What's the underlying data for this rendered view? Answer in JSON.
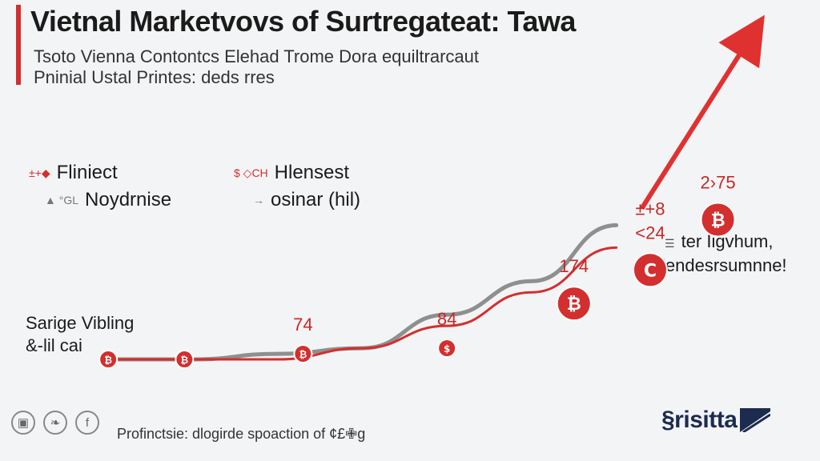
{
  "header": {
    "title": "Vietnal Marketvovs of Surtregаteat: Tawa",
    "subtitle_line1": "Tsoto  Vienna Contontcs Elehad Trome Dora еquiltrarcaut",
    "subtitle_line2": "Pninial Ustal Printes: deds rres"
  },
  "legend": [
    {
      "icon": "±+◆",
      "label": "Fliniect",
      "icon_name": "bitcoin-icon",
      "color": "#d32f2f"
    },
    {
      "icon": "$ ◇CH",
      "label": "Hlensest",
      "icon_name": "dollar-icon",
      "color": "#d32f2f"
    },
    {
      "icon": "▲ °GL",
      "label": "Noydrnise",
      "icon_name": "user-icon",
      "color": "#777777"
    },
    {
      "icon": "→",
      "label": "osinar (hil)",
      "icon_name": "arrow-icon",
      "color": "#777777"
    }
  ],
  "side_notes": {
    "left_line1": "Sarige Vibling",
    "left_line2": "&-lil cai",
    "right_icon": "☰",
    "right_line1": "ter Iigvhum,",
    "right_line2": "lendesrsumnne!"
  },
  "chart_data": {
    "type": "line",
    "colors": {
      "grey_line": "#8f8f8f",
      "red_line": "#d32f2f",
      "arrow": "#e03131",
      "marker": "#d32f2f"
    },
    "grey_series": [
      [
        0,
        0
      ],
      [
        1,
        0
      ],
      [
        2,
        1
      ],
      [
        3,
        2
      ],
      [
        4,
        8
      ],
      [
        5,
        14
      ],
      [
        6,
        24
      ]
    ],
    "red_series": [
      [
        0,
        0
      ],
      [
        2,
        0
      ],
      [
        3,
        2
      ],
      [
        4,
        6
      ],
      [
        5,
        12
      ],
      [
        6,
        20
      ]
    ],
    "arrow_series": [
      [
        6.3,
        27
      ],
      [
        7.6,
        58
      ]
    ],
    "xlim": [
      -0.2,
      7.8
    ],
    "ylim": [
      -3,
      60
    ],
    "markers": [
      {
        "x": 0,
        "y": 0,
        "symbol": "₿",
        "size": "small",
        "label": ""
      },
      {
        "x": 0.9,
        "y": 0,
        "symbol": "₿",
        "size": "small",
        "label": ""
      },
      {
        "x": 2.3,
        "y": 1,
        "symbol": "₿",
        "size": "small",
        "label": "74"
      },
      {
        "x": 4.0,
        "y": 2,
        "symbol": "$",
        "size": "small",
        "label": "84"
      },
      {
        "x": 5.5,
        "y": 10,
        "symbol": "₿",
        "size": "large",
        "label": "174"
      },
      {
        "x": 6.4,
        "y": 16,
        "symbol": "C",
        "size": "large",
        "label": "±+8\n<24"
      },
      {
        "x": 7.2,
        "y": 25,
        "symbol": "₿",
        "size": "large",
        "label": "2›75"
      }
    ]
  },
  "footer": {
    "social_icons": [
      "▣",
      "❧",
      "f"
    ],
    "caption": "Profinctsie: dlogirde spoaction of ¢£✙g",
    "logo": "§risitta"
  }
}
